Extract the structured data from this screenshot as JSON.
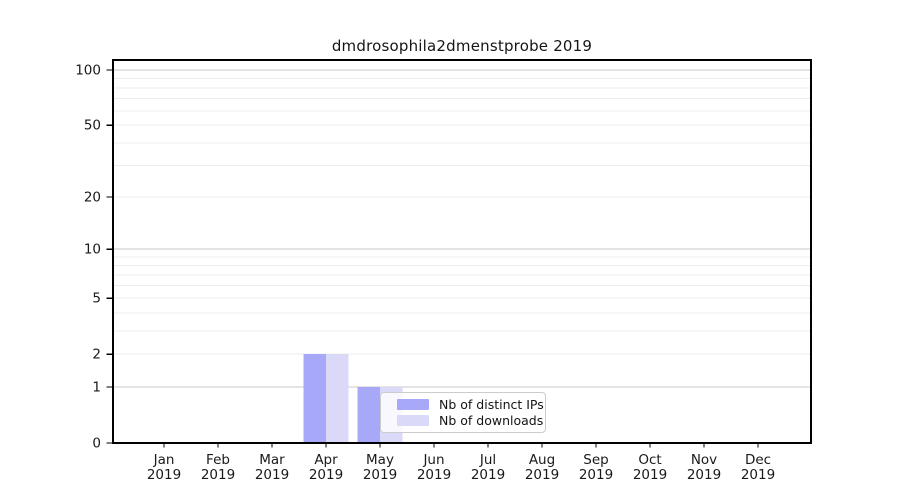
{
  "chart_data": {
    "type": "bar",
    "title": "dmdrosophila2dmenstprobe 2019",
    "categories": [
      "Jan",
      "Feb",
      "Mar",
      "Apr",
      "May",
      "Jun",
      "Jul",
      "Aug",
      "Sep",
      "Oct",
      "Nov",
      "Dec"
    ],
    "category_year": "2019",
    "series": [
      {
        "name": "Nb of distinct IPs",
        "color": "#a8a8f8",
        "values": [
          0,
          0,
          0,
          2,
          1,
          0,
          0,
          0,
          0,
          0,
          0,
          0
        ]
      },
      {
        "name": "Nb of downloads",
        "color": "#dadaf8",
        "values": [
          0,
          0,
          0,
          2,
          1,
          0,
          0,
          0,
          0,
          0,
          0,
          0
        ]
      }
    ],
    "yscale": "log1p",
    "yticks": [
      0,
      1,
      2,
      5,
      10,
      20,
      50,
      100
    ],
    "major_gridline_values": [
      1,
      10,
      100
    ],
    "minor_gridline_values": [
      3,
      4,
      6,
      7,
      8,
      9,
      30,
      40,
      60,
      70,
      80,
      90
    ],
    "ylim": [
      0,
      113
    ],
    "xlabel": "",
    "ylabel": "",
    "grid": true,
    "legend_position": "inside lower-center",
    "colors": {
      "major_grid": "#c9c9c9",
      "minor_grid": "#ededed",
      "axis": "#000000",
      "tick_text": "#1a1a1a"
    }
  }
}
